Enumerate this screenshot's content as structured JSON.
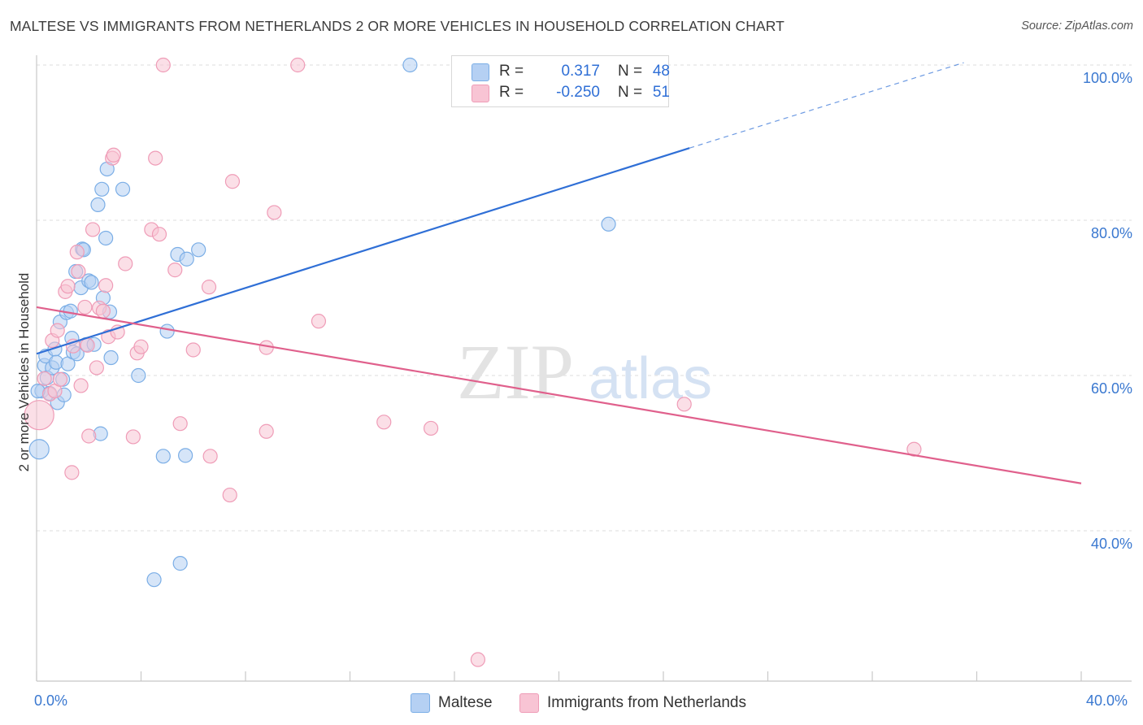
{
  "title": "MALTESE VS IMMIGRANTS FROM NETHERLANDS 2 OR MORE VEHICLES IN HOUSEHOLD CORRELATION CHART",
  "source": "Source: ZipAtlas.com",
  "watermark": {
    "zip": "ZIP",
    "atlas": "atlas"
  },
  "legend_top": [
    {
      "r_label": "R =",
      "r_value": "0.317",
      "n_label": "N =",
      "n_value": "48"
    },
    {
      "r_label": "R =",
      "r_value": "-0.250",
      "n_label": "N =",
      "n_value": "51"
    }
  ],
  "chart_data": {
    "type": "scatter",
    "title": "MALTESE VS IMMIGRANTS FROM NETHERLANDS 2 OR MORE VEHICLES IN HOUSEHOLD CORRELATION CHART",
    "xlabel": "",
    "ylabel": "2 or more Vehicles in Household",
    "xlim": [
      0,
      40
    ],
    "ylim": [
      20,
      104
    ],
    "x_tick_labels": [
      "0.0%",
      "40.0%"
    ],
    "y_ticks": [
      40,
      60,
      80,
      100
    ],
    "y_tick_labels": [
      "40.0%",
      "60.0%",
      "80.0%",
      "100.0%"
    ],
    "grid": true,
    "legend_position": "top-center",
    "series": [
      {
        "name": "Maltese",
        "color": "#7baee6",
        "fill": "#b5d0f3",
        "line_color": "#2f6fd6",
        "r": 0.317,
        "n": 48,
        "trend": {
          "x": [
            0,
            25
          ],
          "y": [
            62.8,
            89.3
          ],
          "dashed_to": [
            35.5,
            100.3
          ]
        },
        "points": [
          [
            0.1,
            50.5
          ],
          [
            0.2,
            58.0
          ],
          [
            0.3,
            61.3
          ],
          [
            0.35,
            62.5
          ],
          [
            0.4,
            59.7
          ],
          [
            0.5,
            57.7
          ],
          [
            0.6,
            61.0
          ],
          [
            0.7,
            63.4
          ],
          [
            0.75,
            61.7
          ],
          [
            0.8,
            56.5
          ],
          [
            0.9,
            66.9
          ],
          [
            1.0,
            59.5
          ],
          [
            1.05,
            57.5
          ],
          [
            1.15,
            68.1
          ],
          [
            1.2,
            61.5
          ],
          [
            1.3,
            68.3
          ],
          [
            1.35,
            64.8
          ],
          [
            1.4,
            63.0
          ],
          [
            1.5,
            73.4
          ],
          [
            1.55,
            62.8
          ],
          [
            1.7,
            71.3
          ],
          [
            1.75,
            76.3
          ],
          [
            1.8,
            76.2
          ],
          [
            1.9,
            64.0
          ],
          [
            2.0,
            72.2
          ],
          [
            2.1,
            72.0
          ],
          [
            2.2,
            64.0
          ],
          [
            2.35,
            82.0
          ],
          [
            2.45,
            52.5
          ],
          [
            2.5,
            84.0
          ],
          [
            2.55,
            70.0
          ],
          [
            2.65,
            77.7
          ],
          [
            2.7,
            86.6
          ],
          [
            2.8,
            68.2
          ],
          [
            2.85,
            62.3
          ],
          [
            3.3,
            84.0
          ],
          [
            3.9,
            60.0
          ],
          [
            4.5,
            33.7
          ],
          [
            4.85,
            49.6
          ],
          [
            5.0,
            65.7
          ],
          [
            5.4,
            75.6
          ],
          [
            5.5,
            35.8
          ],
          [
            5.75,
            75.0
          ],
          [
            5.7,
            49.7
          ],
          [
            6.2,
            76.2
          ],
          [
            14.3,
            100.0
          ],
          [
            21.9,
            79.5
          ],
          [
            0.05,
            58.0
          ]
        ]
      },
      {
        "name": "Immigrants from Netherlands",
        "color": "#ef9cb7",
        "fill": "#f8c4d4",
        "line_color": "#e0608c",
        "r": -0.25,
        "n": 51,
        "trend": {
          "x": [
            0,
            40
          ],
          "y": [
            68.8,
            46.1
          ]
        },
        "points": [
          [
            0.1,
            54.9
          ],
          [
            0.3,
            59.6
          ],
          [
            0.5,
            57.6
          ],
          [
            0.6,
            64.5
          ],
          [
            0.7,
            58.0
          ],
          [
            0.8,
            65.8
          ],
          [
            0.9,
            59.5
          ],
          [
            1.1,
            70.8
          ],
          [
            1.2,
            71.5
          ],
          [
            1.35,
            47.5
          ],
          [
            1.4,
            63.8
          ],
          [
            1.55,
            75.9
          ],
          [
            1.6,
            73.4
          ],
          [
            1.7,
            58.7
          ],
          [
            1.85,
            68.8
          ],
          [
            1.95,
            63.9
          ],
          [
            2.0,
            52.2
          ],
          [
            2.15,
            78.8
          ],
          [
            2.3,
            61.0
          ],
          [
            2.4,
            68.7
          ],
          [
            2.55,
            68.3
          ],
          [
            2.65,
            71.6
          ],
          [
            2.75,
            65.0
          ],
          [
            2.9,
            88.0
          ],
          [
            2.95,
            88.4
          ],
          [
            3.1,
            65.6
          ],
          [
            3.4,
            74.4
          ],
          [
            3.7,
            52.1
          ],
          [
            3.85,
            62.9
          ],
          [
            4.0,
            63.7
          ],
          [
            4.4,
            78.8
          ],
          [
            4.55,
            88.0
          ],
          [
            4.7,
            78.2
          ],
          [
            4.85,
            100.0
          ],
          [
            5.3,
            73.6
          ],
          [
            5.5,
            53.8
          ],
          [
            6.0,
            63.3
          ],
          [
            6.6,
            71.4
          ],
          [
            6.65,
            49.6
          ],
          [
            7.4,
            44.6
          ],
          [
            7.5,
            85.0
          ],
          [
            8.8,
            63.6
          ],
          [
            8.8,
            52.8
          ],
          [
            9.1,
            81.0
          ],
          [
            10.0,
            100.0
          ],
          [
            10.8,
            67.0
          ],
          [
            13.3,
            54.0
          ],
          [
            15.1,
            53.2
          ],
          [
            16.9,
            23.4
          ],
          [
            24.8,
            56.3
          ],
          [
            33.6,
            50.5
          ]
        ]
      }
    ]
  },
  "legend_bottom": [
    {
      "label": "Maltese"
    },
    {
      "label": "Immigrants from Netherlands"
    }
  ]
}
